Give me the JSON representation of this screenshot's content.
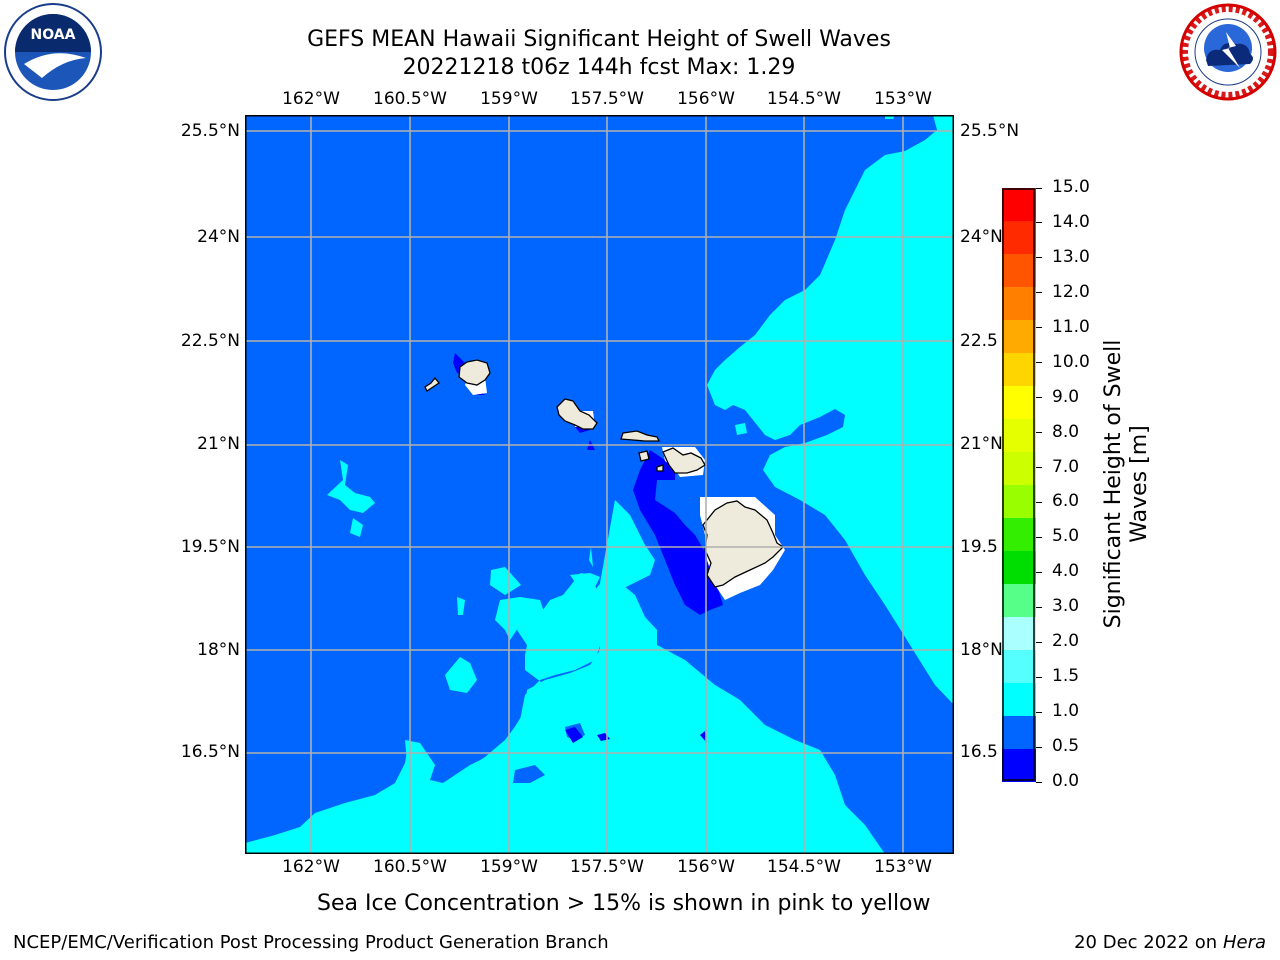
{
  "header": {
    "title_line1": "GEFS MEAN Hawaii Significant Height of Swell Waves",
    "title_line2": "20221218 t06z 144h fcst   Max: 1.29"
  },
  "logos": {
    "noaa_text": "NOAA",
    "noaa_ring_text": "NATIONAL OCEANIC AND ATMOSPHERIC ADMINISTRATION · U.S. DEPARTMENT OF COMMERCE",
    "nws_ring_text": "NATIONAL WEATHER SERVICE"
  },
  "map": {
    "lon_labels": [
      "162°W",
      "160.5°W",
      "159°W",
      "157.5°W",
      "156°W",
      "154.5°W",
      "153°W"
    ],
    "lat_labels": [
      "25.5°N",
      "24°N",
      "22.5°N",
      "21°N",
      "19.5°N",
      "18°N",
      "16.5°N"
    ],
    "lat_labels_right": [
      "25.5°N",
      "24°N",
      "22.5",
      "21°N",
      "19.5",
      "18°N",
      "16.5"
    ],
    "colors": {
      "ocean_05_10": "#0066ff",
      "ocean_00_05": "#0000ff",
      "ocean_10_15": "#00ffff",
      "land": "#efebdc",
      "grid": "#b0b0b0"
    },
    "note": "Sea Ice Concentration > 15% is shown in pink to yellow"
  },
  "colorbar": {
    "label_line1": "Significant Height of Swell",
    "label_line2": "Waves [m]",
    "ticks": [
      "15.0",
      "14.0",
      "13.0",
      "12.0",
      "11.0",
      "10.0",
      "9.0",
      "8.0",
      "7.0",
      "6.0",
      "5.0",
      "4.0",
      "3.0",
      "2.0",
      "1.5",
      "1.0",
      "0.5",
      "0.0"
    ],
    "colors_top_to_bottom": [
      "#ff0000",
      "#ff2a00",
      "#ff5500",
      "#ff8000",
      "#ffaa00",
      "#ffd500",
      "#ffff00",
      "#e5ff00",
      "#ccff00",
      "#99ff00",
      "#33ee00",
      "#00dd00",
      "#55ff88",
      "#aaffff",
      "#55ffff",
      "#00ffff",
      "#0066ff",
      "#0000ff"
    ]
  },
  "footer": {
    "left": "NCEP/EMC/Verification Post Processing Product Generation Branch",
    "right_date": "20 Dec 2022 on",
    "right_host": "Hera"
  }
}
